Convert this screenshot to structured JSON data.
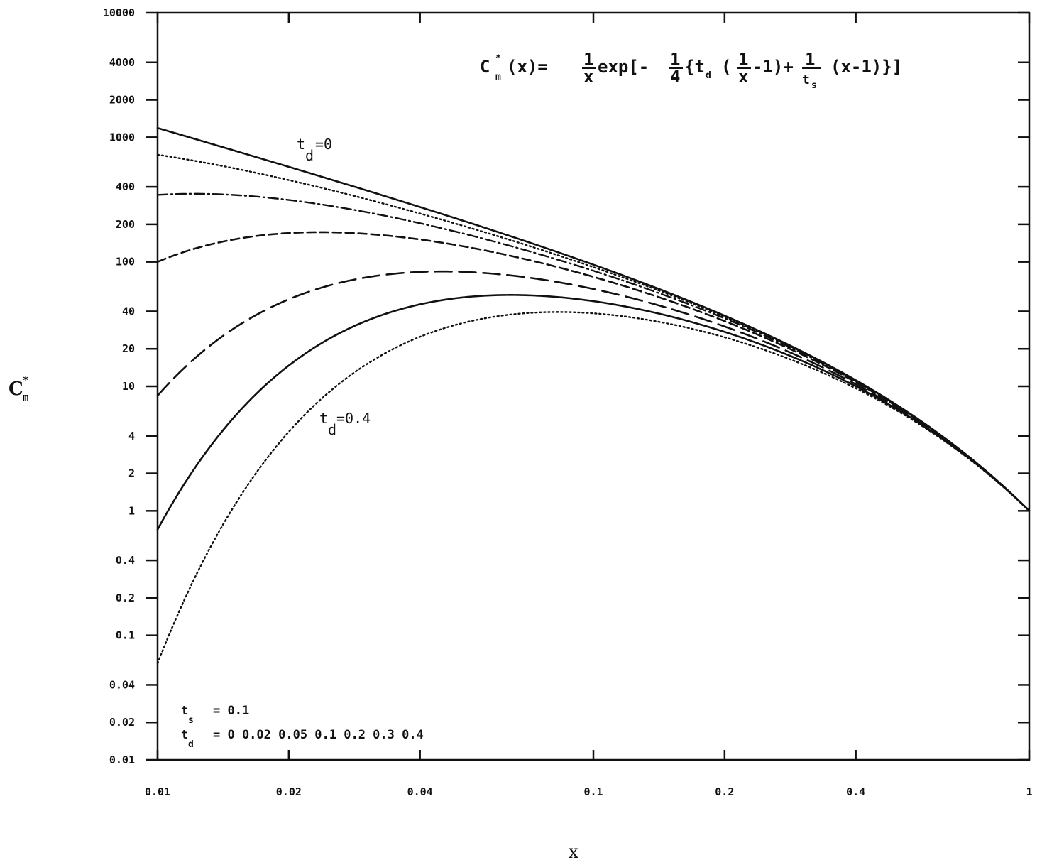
{
  "chart_data": {
    "type": "line",
    "title": "",
    "xlabel": "x",
    "ylabel": "C*m",
    "x_scale": "log",
    "y_scale": "log",
    "xlim": [
      0.01,
      1
    ],
    "ylim": [
      0.01,
      10000
    ],
    "grid": false,
    "formula": "C*m(x) = (1/x) exp[ -(1/4) { t_d (1/x - 1) + (1/t_s) (x - 1) } ]",
    "formula_text": {
      "lhs_main": "C",
      "lhs_sup": "*",
      "lhs_sub": "m",
      "lhs_arg": "(x)=",
      "frac_one": "1",
      "frac_x": "x",
      "exp_open": "exp[-",
      "frac_four": "4",
      "brace_open": "{t",
      "td_sub": "d",
      "paren_open": "(",
      "minus_one_close": "-1)+",
      "ts_sub": "s",
      "tail": "(x-1)}]"
    },
    "x_ticks": [
      0.01,
      0.02,
      0.04,
      0.1,
      0.2,
      0.4,
      1
    ],
    "x_tick_labels": [
      "0.01",
      "0.02",
      "0.04",
      "0.1",
      "0.2",
      "0.4",
      "1"
    ],
    "y_ticks": [
      0.01,
      0.02,
      0.04,
      0.1,
      0.2,
      0.4,
      1,
      2,
      4,
      10,
      20,
      40,
      100,
      200,
      400,
      1000,
      2000,
      4000,
      10000
    ],
    "y_tick_labels": [
      "0.01",
      "0.02",
      "0.04",
      "0.1",
      "0.2",
      "0.4",
      "1",
      "2",
      "4",
      "10",
      "20",
      "40",
      "100",
      "200",
      "400",
      "1000",
      "2000",
      "4000",
      "10000"
    ],
    "parameters": {
      "ts_label": "t",
      "ts_sub": "s",
      "ts_value": "= 0.1",
      "td_label": "t",
      "td_sub": "d",
      "td_values_text": "= 0 0.02 0.05 0.1 0.2 0.3 0.4"
    },
    "t_s": 0.1,
    "series": [
      {
        "t_d": 0,
        "style": "solid"
      },
      {
        "t_d": 0.02,
        "style": "dotted"
      },
      {
        "t_d": 0.05,
        "style": "dash-dot"
      },
      {
        "t_d": 0.1,
        "style": "short-dash"
      },
      {
        "t_d": 0.2,
        "style": "long-dash"
      },
      {
        "t_d": 0.3,
        "style": "solid"
      },
      {
        "t_d": 0.4,
        "style": "dotted"
      }
    ],
    "annotations": [
      {
        "text": "t",
        "sub": "d",
        "value": "=0",
        "x": 0.0158,
        "y": 680
      },
      {
        "text": "t",
        "sub": "d",
        "value": "=0.4",
        "x": 0.0305,
        "y": 3.0
      }
    ]
  }
}
